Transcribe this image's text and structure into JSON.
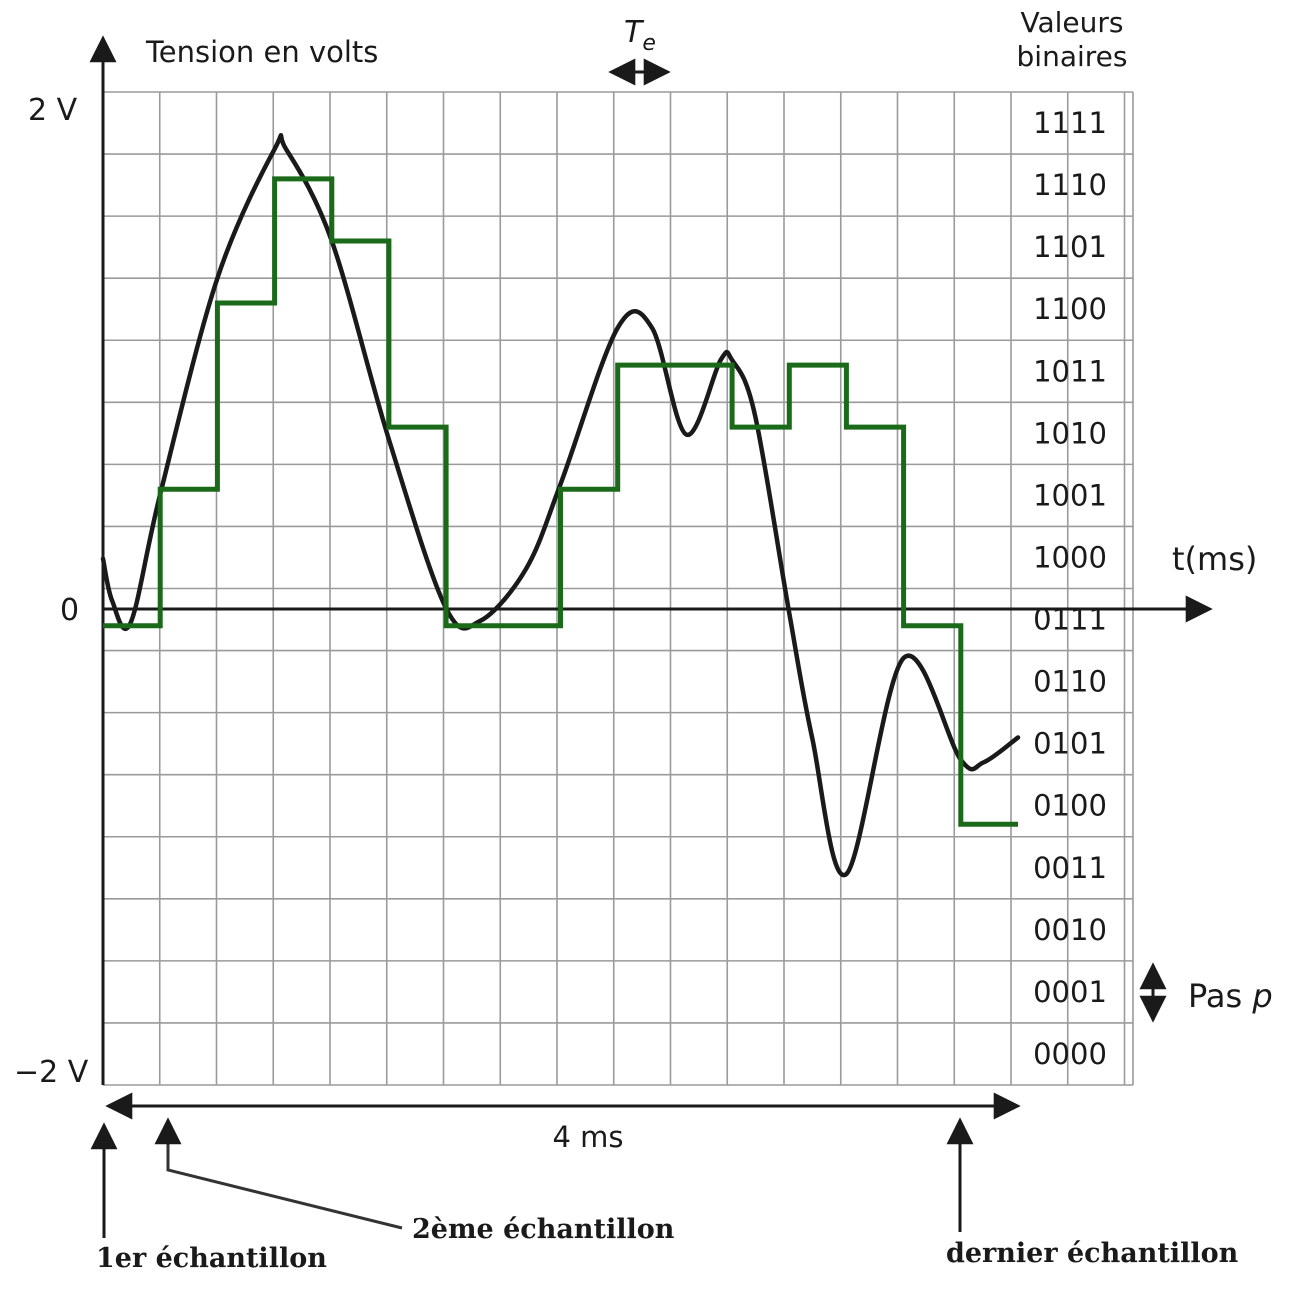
{
  "chart_data": {
    "type": "line",
    "title": "",
    "ylabel": "Tension en volts",
    "xlabel": "t(ms)",
    "ylim": [
      -2,
      2
    ],
    "xlim": [
      0,
      4
    ],
    "y_tick_labels": {
      "top": "2 V",
      "zero": "0",
      "bottom": "−2 V"
    },
    "binary_header": [
      "Valeurs",
      "binaires"
    ],
    "binary_codes": [
      "1111",
      "1110",
      "1101",
      "1100",
      "1011",
      "1010",
      "1001",
      "1000",
      "0111",
      "0110",
      "0101",
      "0100",
      "0011",
      "0010",
      "0001",
      "0000"
    ],
    "sampling_period_label": "T",
    "sampling_period_subscript": "e",
    "step_label": "Pas",
    "step_symbol": "p",
    "duration_label": "4 ms",
    "sample_labels": {
      "first": "1er échantillon",
      "second": "2ème échantillon",
      "last": "dernier échantillon"
    },
    "sampling_period_ms": 0.25,
    "series": [
      {
        "kind": "analog",
        "color": "#1a1a1a",
        "x": [
          0,
          0.04,
          0.12,
          0.25,
          0.5,
          0.75,
          0.8,
          1.0,
          1.25,
          1.5,
          1.65,
          1.85,
          2.0,
          2.25,
          2.4,
          2.55,
          2.7,
          2.75,
          2.85,
          3.0,
          3.1,
          3.25,
          3.5,
          3.75,
          3.85,
          4.0
        ],
        "y": [
          0.12,
          -0.05,
          -0.14,
          0.38,
          1.25,
          1.77,
          1.77,
          1.4,
          0.6,
          -0.08,
          -0.13,
          0.08,
          0.42,
          1.05,
          1.05,
          0.62,
          0.92,
          0.92,
          0.7,
          -0.1,
          -0.6,
          -1.15,
          -0.28,
          -0.69,
          -0.7,
          -0.6
        ]
      },
      {
        "kind": "quantized",
        "color": "#1a6a1a",
        "x": [
          0,
          0.25,
          0.5,
          0.75,
          1.0,
          1.25,
          1.5,
          1.75,
          2.0,
          2.25,
          2.5,
          2.75,
          3.0,
          3.25,
          3.5,
          3.75,
          4.0
        ],
        "y": [
          -0.15,
          0.4,
          1.15,
          1.65,
          1.4,
          0.65,
          -0.15,
          -0.15,
          0.4,
          0.9,
          0.9,
          0.65,
          0.9,
          0.65,
          -0.15,
          -0.95,
          -0.95
        ]
      }
    ]
  }
}
